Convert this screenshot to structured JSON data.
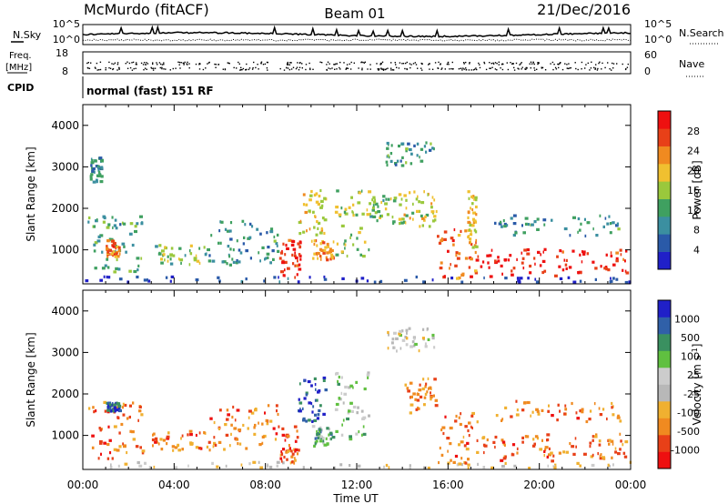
{
  "header": {
    "station": "McMurdo (fitACF)",
    "beam": "Beam 01",
    "date": "21/Dec/2016"
  },
  "strip": {
    "nsky_label": "N.Sky",
    "nsearch_label": "N.Search",
    "noise_ticks_left": [
      "10^5",
      "10^0"
    ],
    "noise_ticks_right": [
      "10^5",
      "10^0"
    ],
    "freq_label_line1": "Freq.",
    "freq_label_line2": "[MHz]",
    "freq_ticks": [
      "18",
      "8"
    ],
    "nave_label": "Nave",
    "nave_ticks": [
      "60",
      "0"
    ],
    "cpid_label": "CPID",
    "cpid_text": "normal (fast) 151 RF"
  },
  "colors": {
    "power": [
      "#2020c8",
      "#2a5aa8",
      "#3b8fa0",
      "#3fa060",
      "#9ac83c",
      "#f0c030",
      "#f08a20",
      "#e84018",
      "#ee1010"
    ],
    "velocity": [
      "#ee1010",
      "#e84018",
      "#f08a20",
      "#f0b030",
      "#b8b8b8",
      "#cccccc",
      "#60c040",
      "#3a9060",
      "#3060a8",
      "#2020c8"
    ]
  },
  "chart_data": [
    {
      "type": "heatmap",
      "title": "",
      "xlabel": "",
      "ylabel": "Slant Range [km]",
      "x_ticks": [
        "00:00",
        "04:00",
        "08:00",
        "12:00",
        "16:00",
        "20:00",
        "00:00"
      ],
      "xlim_hours": [
        0,
        24
      ],
      "ylim": [
        180,
        4500
      ],
      "y_ticks": [
        1000,
        2000,
        3000,
        4000
      ],
      "colorbar": {
        "label": "Power [dB]",
        "ticks": [
          "4",
          "8",
          "12",
          "16",
          "20",
          "24",
          "28"
        ],
        "range": [
          0,
          30
        ]
      },
      "echo_regions": [
        {
          "t0": 0.0,
          "t1": 24.0,
          "r0": 180,
          "r1": 320,
          "level": 0.08
        },
        {
          "t0": 0.2,
          "t1": 2.6,
          "r0": 400,
          "r1": 1800,
          "level": 0.35
        },
        {
          "t0": 0.3,
          "t1": 0.8,
          "r0": 2600,
          "r1": 3200,
          "level": 0.3
        },
        {
          "t0": 1.0,
          "t1": 1.6,
          "r0": 800,
          "r1": 1200,
          "level": 0.75
        },
        {
          "t0": 3.0,
          "t1": 5.5,
          "r0": 600,
          "r1": 1100,
          "level": 0.45
        },
        {
          "t0": 5.5,
          "t1": 8.6,
          "r0": 600,
          "r1": 1700,
          "level": 0.3
        },
        {
          "t0": 8.6,
          "t1": 9.5,
          "r0": 300,
          "r1": 1200,
          "level": 0.9
        },
        {
          "t0": 9.4,
          "t1": 10.6,
          "r0": 1300,
          "r1": 2400,
          "level": 0.6
        },
        {
          "t0": 10.0,
          "t1": 11.0,
          "r0": 700,
          "r1": 1200,
          "level": 0.7
        },
        {
          "t0": 11.0,
          "t1": 12.5,
          "r0": 800,
          "r1": 2500,
          "level": 0.5
        },
        {
          "t0": 12.5,
          "t1": 14.0,
          "r0": 1600,
          "r1": 2300,
          "level": 0.45
        },
        {
          "t0": 13.2,
          "t1": 15.4,
          "r0": 3000,
          "r1": 3550,
          "level": 0.35
        },
        {
          "t0": 14.0,
          "t1": 15.5,
          "r0": 1500,
          "r1": 2400,
          "level": 0.55
        },
        {
          "t0": 15.5,
          "t1": 17.3,
          "r0": 250,
          "r1": 1500,
          "level": 0.8
        },
        {
          "t0": 16.8,
          "t1": 17.2,
          "r0": 1000,
          "r1": 2400,
          "level": 0.6
        },
        {
          "t0": 17.3,
          "t1": 21.0,
          "r0": 300,
          "r1": 1000,
          "level": 0.95
        },
        {
          "t0": 21.0,
          "t1": 23.8,
          "r0": 400,
          "r1": 1000,
          "level": 0.9
        },
        {
          "t0": 18.0,
          "t1": 23.5,
          "r0": 1300,
          "r1": 1800,
          "level": 0.3
        }
      ]
    },
    {
      "type": "heatmap",
      "title": "",
      "xlabel": "Time UT",
      "ylabel": "Slant Range [km]",
      "x_ticks": [
        "00:00",
        "04:00",
        "08:00",
        "12:00",
        "16:00",
        "20:00",
        "00:00"
      ],
      "xlim_hours": [
        0,
        24
      ],
      "ylim": [
        180,
        4500
      ],
      "y_ticks": [
        1000,
        2000,
        3000,
        4000
      ],
      "colorbar": {
        "label": "Velocity [m s",
        "label_sup": "-1",
        "label_end": "]",
        "ticks": [
          "-1000",
          "-500",
          "-100",
          "-25",
          "25",
          "100",
          "500",
          "1000"
        ],
        "range": [
          -1200,
          1200
        ]
      },
      "echo_regions": [
        {
          "t0": 0.0,
          "t1": 24.0,
          "r0": 180,
          "r1": 320,
          "level": 0.45
        },
        {
          "t0": 0.2,
          "t1": 2.6,
          "r0": 400,
          "r1": 1800,
          "level": 0.2
        },
        {
          "t0": 1.0,
          "t1": 1.6,
          "r0": 1550,
          "r1": 1750,
          "level": 0.85
        },
        {
          "t0": 3.0,
          "t1": 5.5,
          "r0": 600,
          "r1": 1100,
          "level": 0.2
        },
        {
          "t0": 5.5,
          "t1": 8.6,
          "r0": 600,
          "r1": 1700,
          "level": 0.22
        },
        {
          "t0": 8.6,
          "t1": 9.5,
          "r0": 300,
          "r1": 1200,
          "level": 0.18
        },
        {
          "t0": 9.4,
          "t1": 10.6,
          "r0": 1300,
          "r1": 2400,
          "level": 0.9
        },
        {
          "t0": 10.0,
          "t1": 11.0,
          "r0": 700,
          "r1": 1200,
          "level": 0.7
        },
        {
          "t0": 11.0,
          "t1": 12.5,
          "r0": 800,
          "r1": 2500,
          "level": 0.6
        },
        {
          "t0": 13.2,
          "t1": 15.4,
          "r0": 3000,
          "r1": 3550,
          "level": 0.5
        },
        {
          "t0": 14.0,
          "t1": 15.5,
          "r0": 1500,
          "r1": 2400,
          "level": 0.25
        },
        {
          "t0": 15.5,
          "t1": 17.3,
          "r0": 250,
          "r1": 1500,
          "level": 0.18
        },
        {
          "t0": 17.3,
          "t1": 21.0,
          "r0": 300,
          "r1": 1000,
          "level": 0.2
        },
        {
          "t0": 21.0,
          "t1": 23.8,
          "r0": 400,
          "r1": 1000,
          "level": 0.25
        },
        {
          "t0": 18.0,
          "t1": 23.5,
          "r0": 1300,
          "r1": 1800,
          "level": 0.22
        }
      ]
    }
  ]
}
